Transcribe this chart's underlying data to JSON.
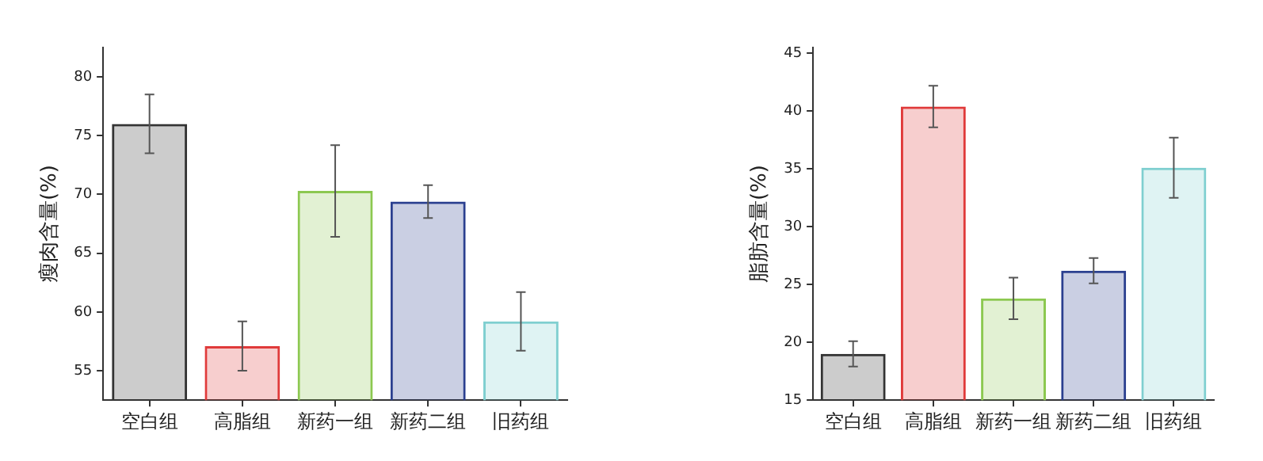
{
  "chart_data": [
    {
      "type": "bar",
      "ylabel": "瘦肉含量(%)",
      "categories": [
        "空白组",
        "高脂组",
        "新药一组",
        "新药二组",
        "旧药组"
      ],
      "values": [
        76.0,
        57.1,
        70.3,
        69.4,
        59.2
      ],
      "colors": [
        "#333333",
        "#e03a3a",
        "#8cc850",
        "#2a3f8f",
        "#7fcfd0"
      ],
      "errors": [
        2.5,
        2.1,
        3.9,
        1.4,
        2.5
      ],
      "ylim": [
        52.5,
        82.5
      ],
      "yticks": [
        55,
        60,
        65,
        70,
        75,
        80
      ],
      "grid": false
    },
    {
      "type": "bar",
      "ylabel": "脂肪含量(%)",
      "categories": [
        "空白组",
        "高脂组",
        "新药一组",
        "新药二组",
        "旧药组"
      ],
      "values": [
        19.0,
        40.4,
        23.8,
        26.2,
        35.1
      ],
      "colors": [
        "#333333",
        "#e03a3a",
        "#8cc850",
        "#2a3f8f",
        "#7fcfd0"
      ],
      "errors": [
        1.1,
        1.8,
        1.8,
        1.1,
        2.6
      ],
      "ylim": [
        15,
        45.5
      ],
      "yticks": [
        15,
        20,
        25,
        30,
        35,
        40,
        45
      ],
      "grid": false
    }
  ]
}
